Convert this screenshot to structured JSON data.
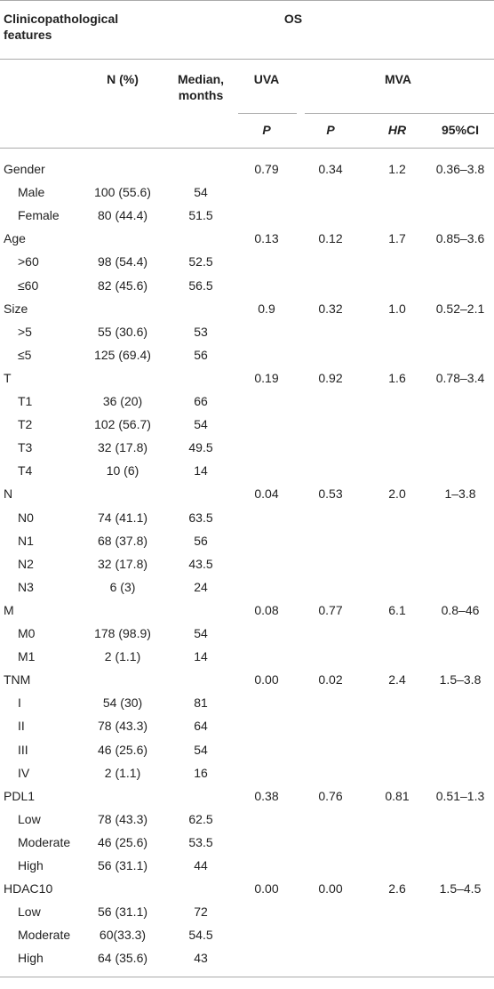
{
  "header": {
    "features": "Clinicopathological features",
    "os": "OS",
    "n_pct": "N (%)",
    "median": "Median, months",
    "uva": "UVA",
    "mva": "MVA",
    "uva_p": "P",
    "mva_p": "P",
    "hr": "HR",
    "ci": "95%CI"
  },
  "table": {
    "rows": [
      [
        "Gender",
        null,
        null,
        "0.79",
        "0.34",
        "1.2",
        "0.36–3.8"
      ],
      [
        "Male",
        "100 (55.6)",
        "54",
        null,
        null,
        null,
        null
      ],
      [
        "Female",
        "80 (44.4)",
        "51.5",
        null,
        null,
        null,
        null
      ],
      [
        "Age",
        null,
        null,
        "0.13",
        "0.12",
        "1.7",
        "0.85–3.6"
      ],
      [
        ">60",
        "98 (54.4)",
        "52.5",
        null,
        null,
        null,
        null
      ],
      [
        "≤60",
        "82 (45.6)",
        "56.5",
        null,
        null,
        null,
        null
      ],
      [
        "Size",
        null,
        null,
        "0.9",
        "0.32",
        "1.0",
        "0.52–2.1"
      ],
      [
        ">5",
        "55 (30.6)",
        "53",
        null,
        null,
        null,
        null
      ],
      [
        "≤5",
        "125 (69.4)",
        "56",
        null,
        null,
        null,
        null
      ],
      [
        "T",
        null,
        null,
        "0.19",
        "0.92",
        "1.6",
        "0.78–3.4"
      ],
      [
        "T1",
        "36 (20)",
        "66",
        null,
        null,
        null,
        null
      ],
      [
        "T2",
        "102 (56.7)",
        "54",
        null,
        null,
        null,
        null
      ],
      [
        "T3",
        "32 (17.8)",
        "49.5",
        null,
        null,
        null,
        null
      ],
      [
        "T4",
        "10 (6)",
        "14",
        null,
        null,
        null,
        null
      ],
      [
        "N",
        null,
        null,
        "0.04",
        "0.53",
        "2.0",
        "1–3.8"
      ],
      [
        "N0",
        "74 (41.1)",
        "63.5",
        null,
        null,
        null,
        null
      ],
      [
        "N1",
        "68 (37.8)",
        "56",
        null,
        null,
        null,
        null
      ],
      [
        "N2",
        "32 (17.8)",
        "43.5",
        null,
        null,
        null,
        null
      ],
      [
        "N3",
        "6 (3)",
        "24",
        null,
        null,
        null,
        null
      ],
      [
        "M",
        null,
        null,
        "0.08",
        "0.77",
        "6.1",
        "0.8–46"
      ],
      [
        "M0",
        "178 (98.9)",
        "54",
        null,
        null,
        null,
        null
      ],
      [
        "M1",
        "2 (1.1)",
        "14",
        null,
        null,
        null,
        null
      ],
      [
        "TNM",
        null,
        null,
        "0.00",
        "0.02",
        "2.4",
        "1.5–3.8"
      ],
      [
        "I",
        "54 (30)",
        "81",
        null,
        null,
        null,
        null
      ],
      [
        "II",
        "78 (43.3)",
        "64",
        null,
        null,
        null,
        null
      ],
      [
        "III",
        "46 (25.6)",
        "54",
        null,
        null,
        null,
        null
      ],
      [
        "IV",
        "2 (1.1)",
        "16",
        null,
        null,
        null,
        null
      ],
      [
        "PDL1",
        null,
        null,
        "0.38",
        "0.76",
        "0.81",
        "0.51–1.3"
      ],
      [
        "Low",
        "78 (43.3)",
        "62.5",
        null,
        null,
        null,
        null
      ],
      [
        "Moderate",
        "46 (25.6)",
        "53.5",
        null,
        null,
        null,
        null
      ],
      [
        "High",
        "56 (31.1)",
        "44",
        null,
        null,
        null,
        null
      ],
      [
        "HDAC10",
        null,
        null,
        "0.00",
        "0.00",
        "2.6",
        "1.5–4.5"
      ],
      [
        "Low",
        "56 (31.1)",
        "72",
        null,
        null,
        null,
        null
      ],
      [
        "Moderate",
        "60(33.3)",
        "54.5",
        null,
        null,
        null,
        null
      ],
      [
        "High",
        "64 (35.6)",
        "43",
        null,
        null,
        null,
        null
      ]
    ]
  }
}
